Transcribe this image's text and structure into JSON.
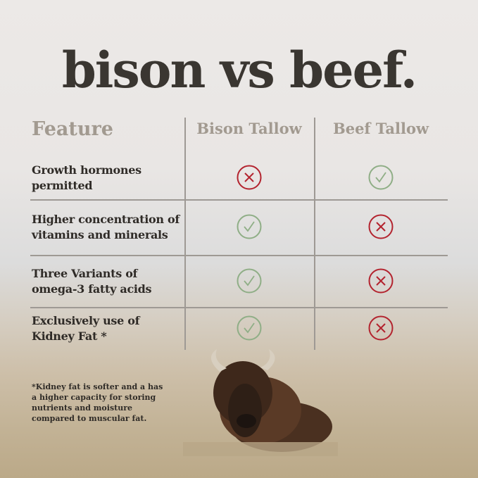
{
  "title": "bison vs beef.",
  "table": {
    "headers": [
      "Feature",
      "Bison Tallow",
      "Beef Tallow"
    ],
    "rows": [
      {
        "feature": "Growth hormones permitted",
        "bison": "cross",
        "beef": "check"
      },
      {
        "feature": "Higher concentration of vitamins and minerals",
        "bison": "check",
        "beef": "cross"
      },
      {
        "feature": "Three Variants of omega-3 fatty acids",
        "bison": "check",
        "beef": "cross"
      },
      {
        "feature": "Exclusively use of Kidney Fat *",
        "bison": "check",
        "beef": "cross"
      }
    ]
  },
  "footnote": "*Kidney fat is softer and a has a higher capacity for storing nutrients and moisture compared to muscular fat.",
  "colors": {
    "check": "#8fae86",
    "cross": "#b3232e",
    "header": "#a29a90",
    "text": "#2f2b27"
  }
}
